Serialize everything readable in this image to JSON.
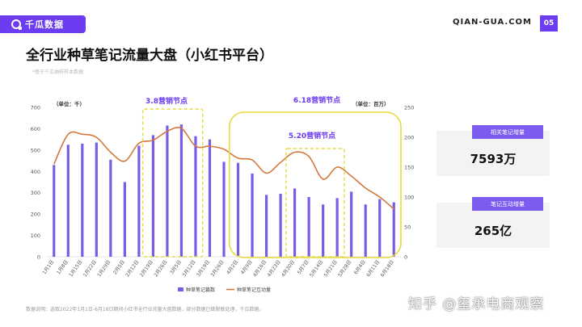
{
  "header": {
    "logo_text": "千瓜数据",
    "site": "QIAN-GUA.COM",
    "page_number": "05"
  },
  "title": "全行业种草笔记流量大盘（小红书平台）",
  "subtitle": "*基于千瓜抽样样本数据",
  "colors": {
    "brand": "#6c3cf0",
    "bar": "#7b5ce6",
    "line": "#d4783a",
    "highlight": "#e6dc3c"
  },
  "chart_data": {
    "type": "bar",
    "categories": [
      "1月1日",
      "1月8日",
      "1月15日",
      "1月22日",
      "1月29日",
      "2月5日",
      "2月12日",
      "2月19日",
      "2月26日",
      "3月5日",
      "3月12日",
      "3月19日",
      "3月26日",
      "4月2日",
      "4月9日",
      "4月16日",
      "4月23日",
      "4月30日",
      "5月7日",
      "5月14日",
      "5月21日",
      "5月28日",
      "6月4日",
      "6月11日",
      "6月18日"
    ],
    "left_unit": "（单位：千）",
    "right_unit": "（单位：百万）",
    "left_ticks": [
      0,
      100,
      200,
      300,
      400,
      500,
      600,
      700
    ],
    "right_ticks": [
      0,
      50,
      100,
      150,
      200,
      250
    ],
    "ylim_left": [
      0,
      700
    ],
    "ylim_right": [
      0,
      250
    ],
    "series": [
      {
        "name": "种草笔记篇数",
        "type": "bar",
        "axis": "left",
        "values": [
          430,
          525,
          530,
          535,
          455,
          350,
          520,
          570,
          615,
          620,
          565,
          550,
          445,
          440,
          390,
          290,
          295,
          320,
          280,
          245,
          275,
          305,
          245,
          270,
          255
        ]
      },
      {
        "name": "种草笔记互动量",
        "type": "line",
        "axis": "right",
        "values": [
          155,
          205,
          205,
          200,
          175,
          160,
          190,
          195,
          210,
          215,
          185,
          185,
          180,
          165,
          162,
          140,
          158,
          175,
          168,
          130,
          150,
          135,
          115,
          100,
          80
        ]
      }
    ],
    "annotations": [
      {
        "label": "3.8营销节点"
      },
      {
        "label": "6.18营销节点"
      },
      {
        "label": "5.20营销节点"
      }
    ],
    "legend_position": "bottom"
  },
  "cards": [
    {
      "label": "相关笔记增量",
      "value": "7593万"
    },
    {
      "label": "笔记互动增量",
      "value": "265亿"
    }
  ],
  "footnote": "数据说明：选取2022年1月1日-6月18日期间小红书全行业流量大盘数据，部分数据已做脱敏处理，千瓜数据。",
  "watermark": "知乎 @玺承电商观察"
}
